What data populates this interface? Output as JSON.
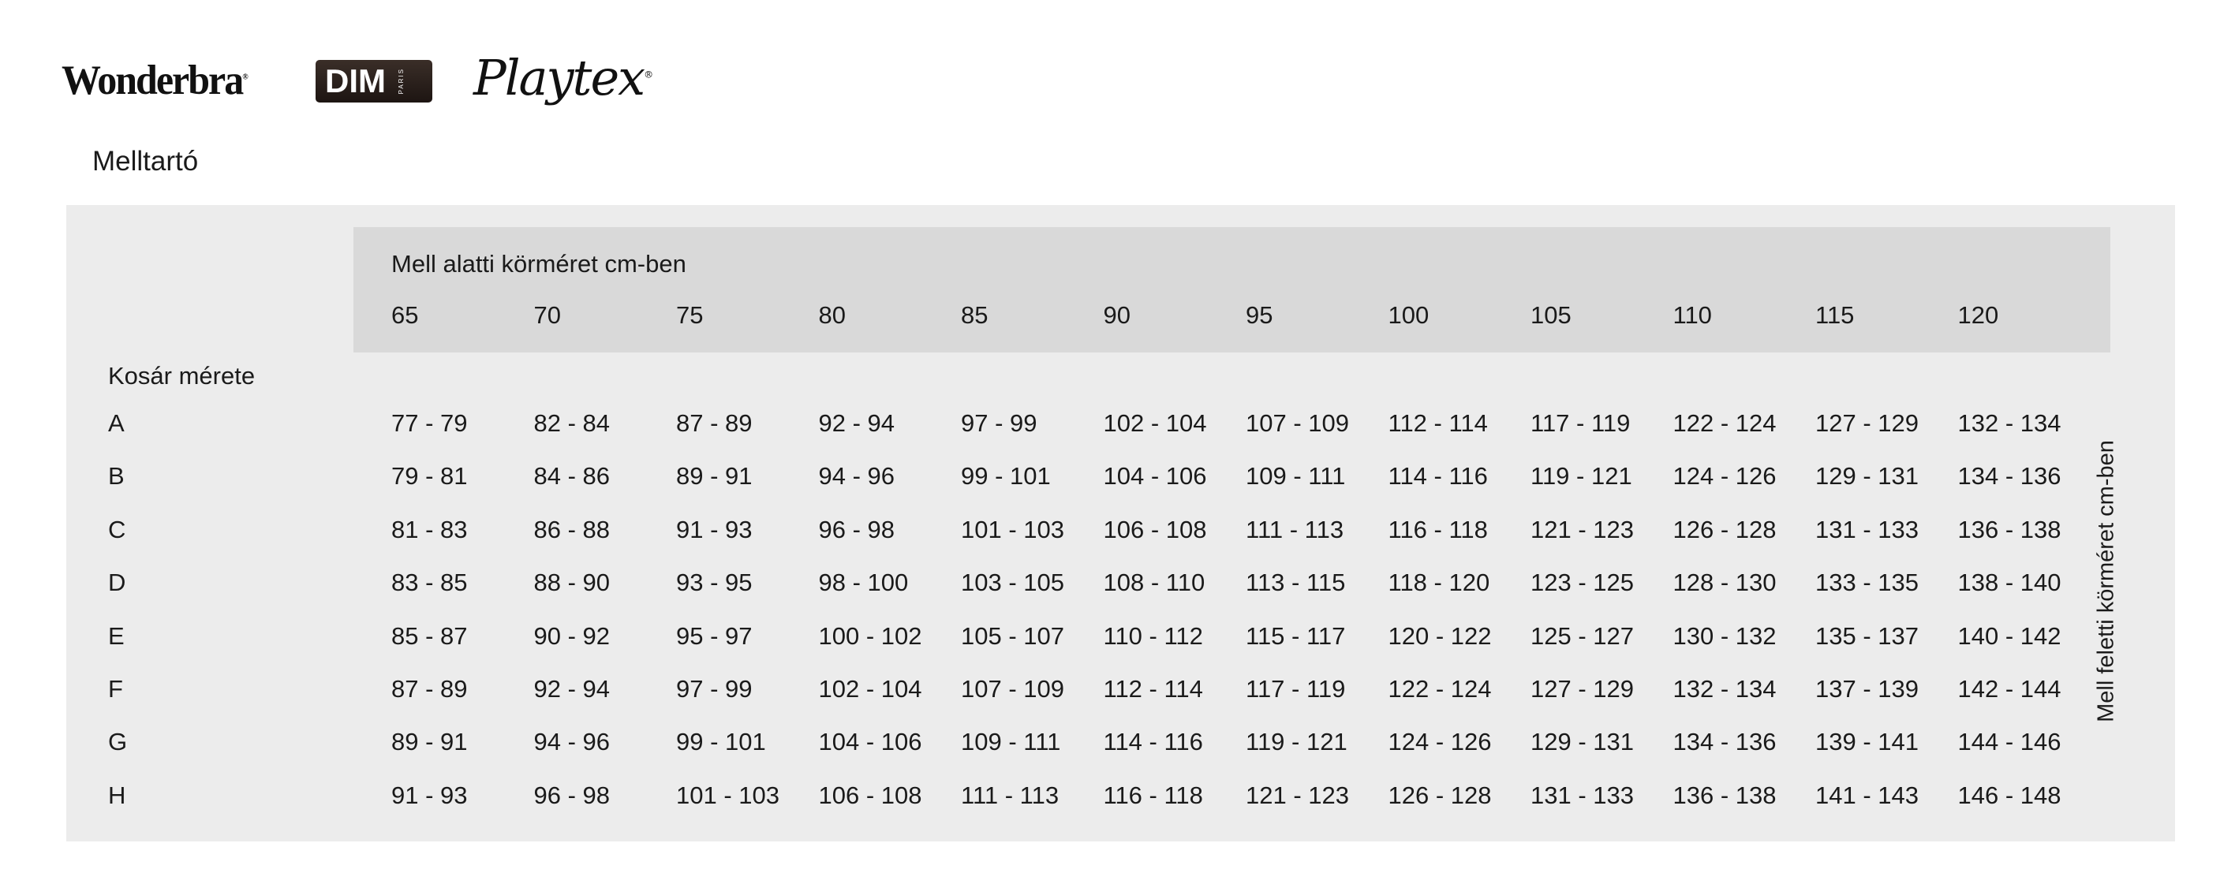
{
  "logos": {
    "wonderbra": "Wonderbra",
    "dim": "DIM",
    "dim_sub": "PARIS",
    "playtex": "Playtex"
  },
  "page_title": "Melltartó",
  "table": {
    "column_group_label": "Mell alatti körméret cm-ben",
    "row_group_label": "Kosár mérete",
    "side_label": "Mell feletti körméret cm-ben",
    "columns": [
      "65",
      "70",
      "75",
      "80",
      "85",
      "90",
      "95",
      "100",
      "105",
      "110",
      "115",
      "120"
    ],
    "rows": [
      {
        "cup": "A",
        "values": [
          "77 - 79",
          "82 - 84",
          "87 - 89",
          "92 - 94",
          "97 - 99",
          "102 - 104",
          "107 - 109",
          "112 - 114",
          "117 - 119",
          "122 - 124",
          "127 - 129",
          "132 - 134"
        ]
      },
      {
        "cup": "B",
        "values": [
          "79 - 81",
          "84 - 86",
          "89 - 91",
          "94 - 96",
          "99 - 101",
          "104 - 106",
          "109 - 111",
          "114 - 116",
          "119 - 121",
          "124 - 126",
          "129 - 131",
          "134 - 136"
        ]
      },
      {
        "cup": "C",
        "values": [
          "81 - 83",
          "86 - 88",
          "91 - 93",
          "96 - 98",
          "101 - 103",
          "106 - 108",
          "111 - 113",
          "116 - 118",
          "121 - 123",
          "126 - 128",
          "131 - 133",
          "136 - 138"
        ]
      },
      {
        "cup": "D",
        "values": [
          "83 - 85",
          "88 - 90",
          "93 - 95",
          "98 - 100",
          "103 - 105",
          "108 - 110",
          "113 - 115",
          "118 - 120",
          "123 - 125",
          "128 - 130",
          "133 - 135",
          "138 - 140"
        ]
      },
      {
        "cup": "E",
        "values": [
          "85 - 87",
          "90 - 92",
          "95 - 97",
          "100 - 102",
          "105 - 107",
          "110 - 112",
          "115 - 117",
          "120 - 122",
          "125 - 127",
          "130 - 132",
          "135 - 137",
          "140 - 142"
        ]
      },
      {
        "cup": "F",
        "values": [
          "87 - 89",
          "92 - 94",
          "97 - 99",
          "102 - 104",
          "107 - 109",
          "112 - 114",
          "117 - 119",
          "122 - 124",
          "127 - 129",
          "132 - 134",
          "137 - 139",
          "142 - 144"
        ]
      },
      {
        "cup": "G",
        "values": [
          "89 - 91",
          "94 - 96",
          "99 - 101",
          "104 - 106",
          "109 - 111",
          "114 - 116",
          "119 - 121",
          "124 - 126",
          "129 - 131",
          "134 - 136",
          "139 - 141",
          "144 - 146"
        ]
      },
      {
        "cup": "H",
        "values": [
          "91 - 93",
          "96 - 98",
          "101 - 103",
          "106 - 108",
          "111 - 113",
          "116 - 118",
          "121 - 123",
          "126 - 128",
          "131 - 133",
          "136 - 138",
          "141 - 143",
          "146 - 148"
        ]
      }
    ]
  },
  "colors": {
    "panel": "#ececec",
    "header_band": "#d9d9d9"
  }
}
